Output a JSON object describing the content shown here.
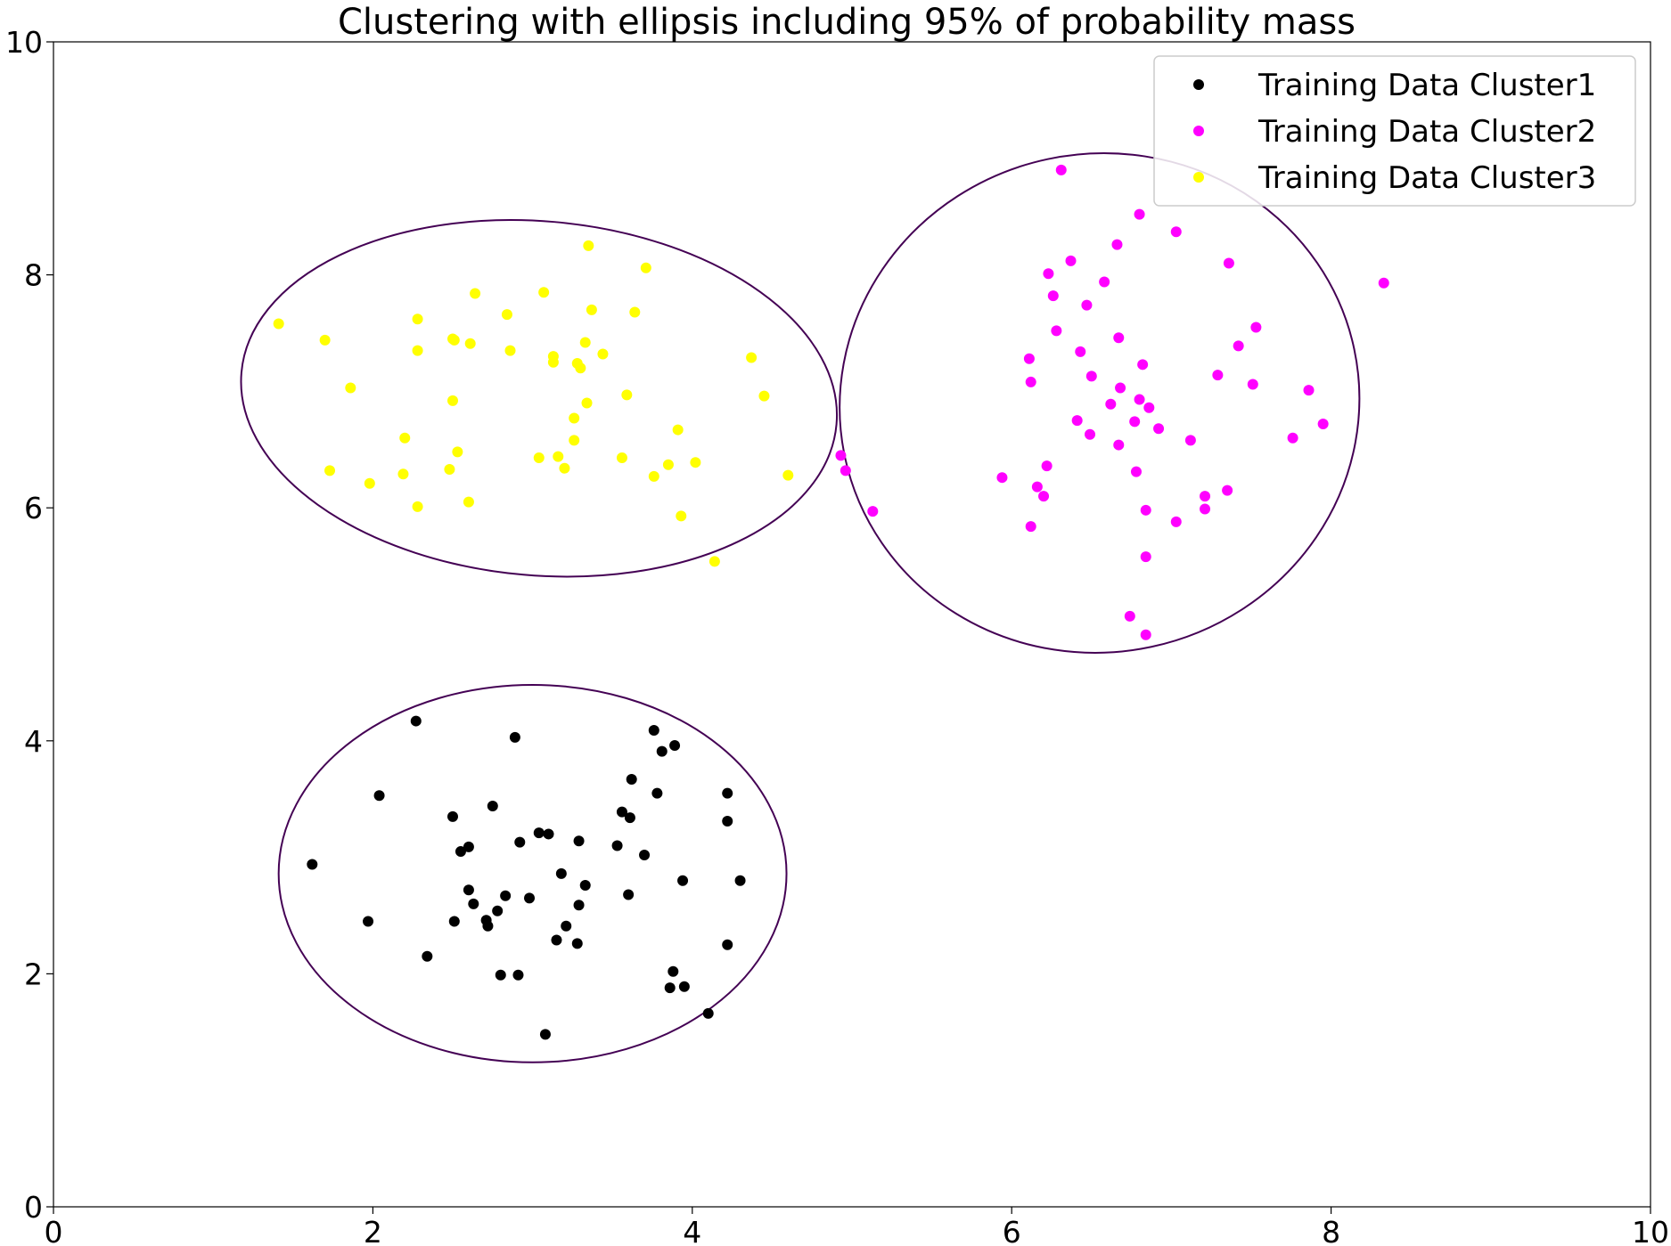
{
  "chart_data": {
    "type": "scatter",
    "title": "Clustering with ellipsis including 95% of probability mass",
    "xlabel": "",
    "ylabel": "",
    "xlim": [
      0,
      10
    ],
    "ylim": [
      0,
      10
    ],
    "xticks": [
      0,
      2,
      4,
      6,
      8,
      10
    ],
    "yticks": [
      0,
      2,
      4,
      6,
      8,
      10
    ],
    "grid": false,
    "legend_position": "upper-right",
    "series": [
      {
        "name": "Training Data Cluster1",
        "color": "#000000",
        "points": [
          [
            1.62,
            2.94
          ],
          [
            1.97,
            2.45
          ],
          [
            2.04,
            3.53
          ],
          [
            2.27,
            4.17
          ],
          [
            2.34,
            2.15
          ],
          [
            2.5,
            3.35
          ],
          [
            2.51,
            2.45
          ],
          [
            2.55,
            3.05
          ],
          [
            2.6,
            3.09
          ],
          [
            2.6,
            2.72
          ],
          [
            2.63,
            2.6
          ],
          [
            2.71,
            2.46
          ],
          [
            2.72,
            2.41
          ],
          [
            2.75,
            3.44
          ],
          [
            2.78,
            2.54
          ],
          [
            2.8,
            1.99
          ],
          [
            2.83,
            2.67
          ],
          [
            2.89,
            4.03
          ],
          [
            2.91,
            1.99
          ],
          [
            2.92,
            3.13
          ],
          [
            2.98,
            2.65
          ],
          [
            3.04,
            3.21
          ],
          [
            3.08,
            1.48
          ],
          [
            3.1,
            3.2
          ],
          [
            3.15,
            2.29
          ],
          [
            3.18,
            2.86
          ],
          [
            3.21,
            2.41
          ],
          [
            3.28,
            2.26
          ],
          [
            3.29,
            3.14
          ],
          [
            3.29,
            2.59
          ],
          [
            3.33,
            2.76
          ],
          [
            3.53,
            3.1
          ],
          [
            3.56,
            3.39
          ],
          [
            3.6,
            2.68
          ],
          [
            3.61,
            3.34
          ],
          [
            3.62,
            3.67
          ],
          [
            3.7,
            3.02
          ],
          [
            3.76,
            4.09
          ],
          [
            3.78,
            3.55
          ],
          [
            3.81,
            3.91
          ],
          [
            3.86,
            1.88
          ],
          [
            3.88,
            2.02
          ],
          [
            3.89,
            3.96
          ],
          [
            3.94,
            2.8
          ],
          [
            3.95,
            1.89
          ],
          [
            4.1,
            1.66
          ],
          [
            4.22,
            3.31
          ],
          [
            4.22,
            3.55
          ],
          [
            4.22,
            2.25
          ],
          [
            4.3,
            2.8
          ]
        ]
      },
      {
        "name": "Training Data Cluster2",
        "color": "#ff00ff",
        "points": [
          [
            4.93,
            6.45
          ],
          [
            4.96,
            6.32
          ],
          [
            5.13,
            5.97
          ],
          [
            5.94,
            6.26
          ],
          [
            6.11,
            7.28
          ],
          [
            6.12,
            7.08
          ],
          [
            6.12,
            5.84
          ],
          [
            6.16,
            6.18
          ],
          [
            6.2,
            6.1
          ],
          [
            6.22,
            6.36
          ],
          [
            6.23,
            8.01
          ],
          [
            6.26,
            7.82
          ],
          [
            6.28,
            7.52
          ],
          [
            6.31,
            8.9
          ],
          [
            6.37,
            8.12
          ],
          [
            6.41,
            6.75
          ],
          [
            6.43,
            7.34
          ],
          [
            6.47,
            7.74
          ],
          [
            6.49,
            6.63
          ],
          [
            6.5,
            7.13
          ],
          [
            6.58,
            7.94
          ],
          [
            6.62,
            6.89
          ],
          [
            6.66,
            8.26
          ],
          [
            6.67,
            7.46
          ],
          [
            6.67,
            6.54
          ],
          [
            6.68,
            7.03
          ],
          [
            6.74,
            5.07
          ],
          [
            6.77,
            6.74
          ],
          [
            6.78,
            6.31
          ],
          [
            6.8,
            8.52
          ],
          [
            6.8,
            6.93
          ],
          [
            6.82,
            7.23
          ],
          [
            6.84,
            5.98
          ],
          [
            6.84,
            5.58
          ],
          [
            6.84,
            4.91
          ],
          [
            6.86,
            6.86
          ],
          [
            6.92,
            6.68
          ],
          [
            7.03,
            8.37
          ],
          [
            7.03,
            5.88
          ],
          [
            7.12,
            6.58
          ],
          [
            7.21,
            6.1
          ],
          [
            7.21,
            5.99
          ],
          [
            7.29,
            7.14
          ],
          [
            7.35,
            6.15
          ],
          [
            7.36,
            8.1
          ],
          [
            7.42,
            7.39
          ],
          [
            7.51,
            7.06
          ],
          [
            7.53,
            7.55
          ],
          [
            7.76,
            6.6
          ],
          [
            7.86,
            7.01
          ],
          [
            7.95,
            6.72
          ],
          [
            8.33,
            7.93
          ]
        ]
      },
      {
        "name": "Training Data Cluster3",
        "color": "#ffff00",
        "points": [
          [
            1.41,
            7.58
          ],
          [
            1.7,
            7.44
          ],
          [
            1.73,
            6.32
          ],
          [
            1.86,
            7.03
          ],
          [
            1.98,
            6.21
          ],
          [
            2.19,
            6.29
          ],
          [
            2.2,
            6.6
          ],
          [
            2.28,
            7.62
          ],
          [
            2.28,
            7.35
          ],
          [
            2.28,
            6.01
          ],
          [
            2.48,
            6.33
          ],
          [
            2.5,
            7.45
          ],
          [
            2.5,
            6.92
          ],
          [
            2.51,
            7.44
          ],
          [
            2.53,
            6.48
          ],
          [
            2.6,
            6.05
          ],
          [
            2.61,
            7.41
          ],
          [
            2.64,
            7.84
          ],
          [
            2.84,
            7.66
          ],
          [
            2.86,
            7.35
          ],
          [
            3.04,
            6.43
          ],
          [
            3.07,
            7.85
          ],
          [
            3.13,
            7.3
          ],
          [
            3.13,
            7.25
          ],
          [
            3.16,
            6.44
          ],
          [
            3.2,
            6.34
          ],
          [
            3.26,
            6.58
          ],
          [
            3.26,
            6.77
          ],
          [
            3.28,
            7.24
          ],
          [
            3.3,
            7.2
          ],
          [
            3.33,
            7.42
          ],
          [
            3.34,
            6.9
          ],
          [
            3.35,
            8.25
          ],
          [
            3.37,
            7.7
          ],
          [
            3.44,
            7.32
          ],
          [
            3.56,
            6.43
          ],
          [
            3.59,
            6.97
          ],
          [
            3.64,
            7.68
          ],
          [
            3.71,
            8.06
          ],
          [
            3.76,
            6.27
          ],
          [
            3.85,
            6.37
          ],
          [
            3.91,
            6.67
          ],
          [
            3.93,
            5.93
          ],
          [
            4.02,
            6.39
          ],
          [
            4.14,
            5.54
          ],
          [
            4.37,
            7.29
          ],
          [
            4.45,
            6.96
          ],
          [
            4.6,
            6.28
          ]
        ]
      }
    ],
    "ellipses": [
      {
        "cx": 3.0,
        "cy": 2.86,
        "a": 1.59,
        "b": 1.62,
        "angle_deg": 0,
        "color": "#440154"
      },
      {
        "cx": 6.55,
        "cy": 6.9,
        "a": 1.63,
        "b": 2.14,
        "angle_deg": 12,
        "color": "#440154"
      },
      {
        "cx": 3.04,
        "cy": 6.94,
        "a": 1.87,
        "b": 1.52,
        "angle_deg": -5,
        "color": "#440154"
      }
    ]
  }
}
